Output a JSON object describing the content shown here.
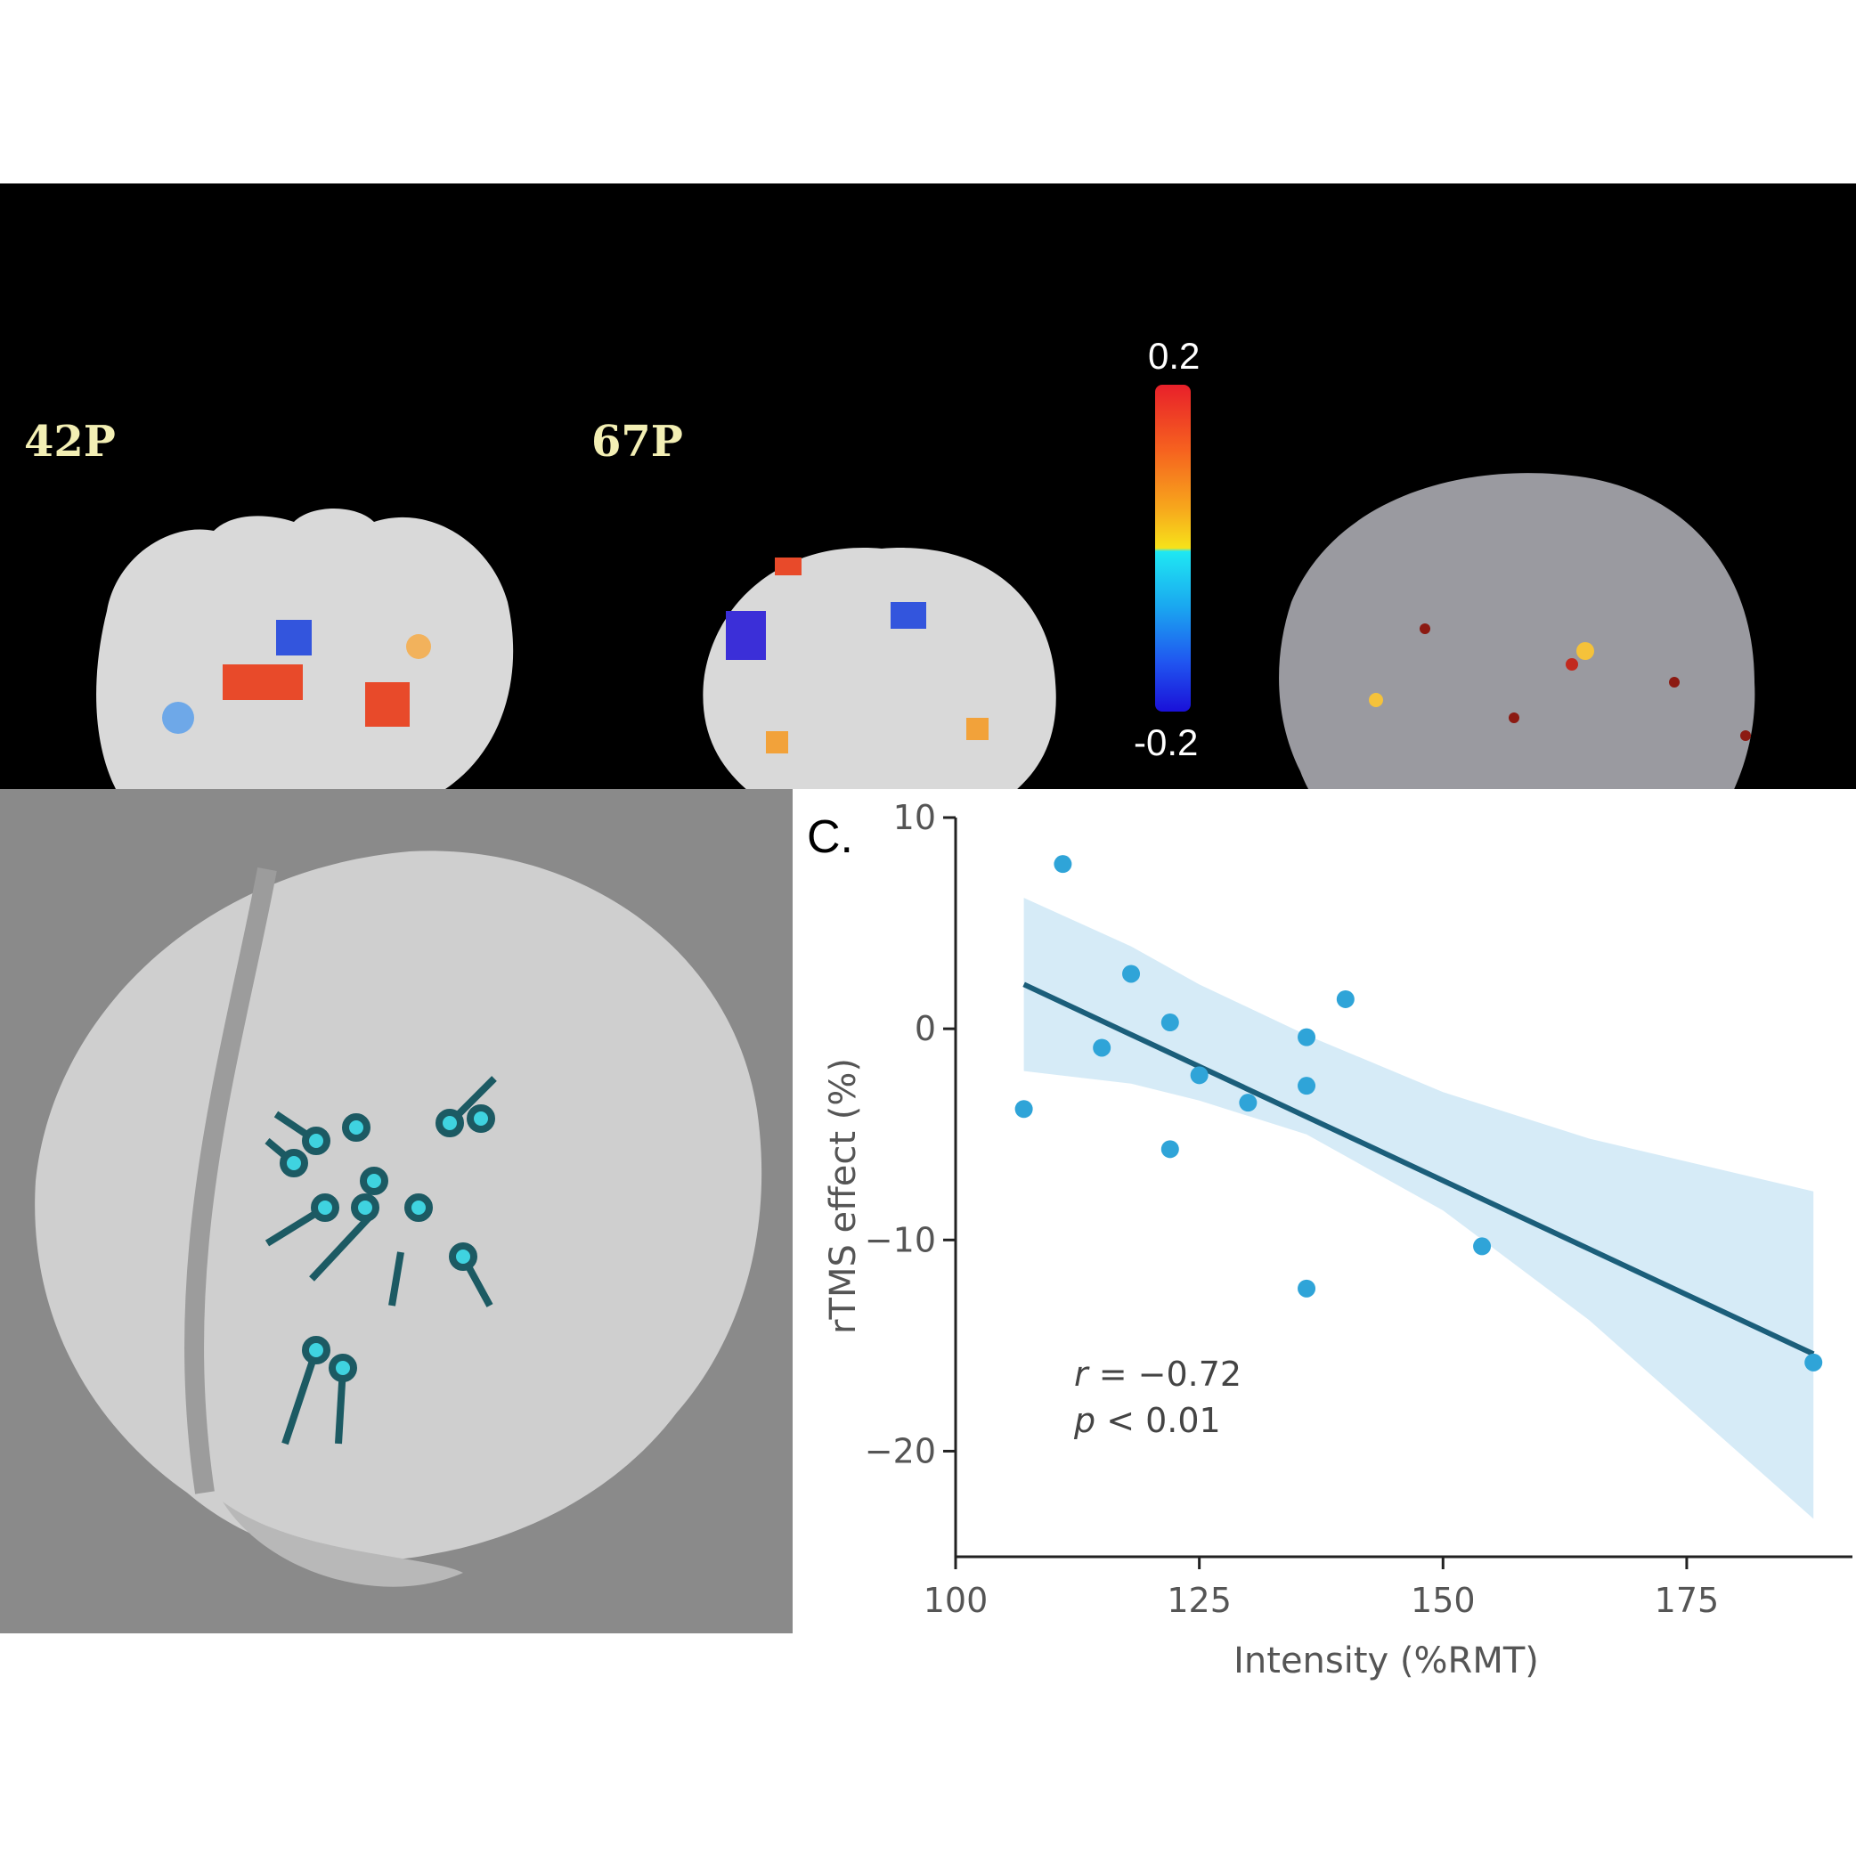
{
  "panels": {
    "slice_labels": [
      "42P",
      "67P"
    ],
    "colorbar": {
      "max_label": "0.2",
      "min_label": "-0.2"
    },
    "chart_panel_label": "C."
  },
  "chart_data": {
    "type": "scatter",
    "xlabel": "Intensity (%RMT)",
    "ylabel": "rTMS effect (%)",
    "xlim": [
      100,
      192
    ],
    "ylim": [
      -25,
      10
    ],
    "xticks": [
      100,
      125,
      150,
      175
    ],
    "yticks": [
      10,
      0,
      -10,
      -20
    ],
    "tick_labels_x": [
      "100",
      "125",
      "150",
      "175"
    ],
    "tick_labels_y": [
      "10",
      "0",
      "−10",
      "−20"
    ],
    "points": [
      {
        "x": 107,
        "y": -3.8
      },
      {
        "x": 111,
        "y": 7.8
      },
      {
        "x": 115,
        "y": -0.9
      },
      {
        "x": 118,
        "y": 2.6
      },
      {
        "x": 122,
        "y": 0.3
      },
      {
        "x": 122,
        "y": -5.7
      },
      {
        "x": 125,
        "y": -2.2
      },
      {
        "x": 130,
        "y": -3.5
      },
      {
        "x": 136,
        "y": -0.4
      },
      {
        "x": 136,
        "y": -2.7
      },
      {
        "x": 136,
        "y": -12.3
      },
      {
        "x": 140,
        "y": 1.4
      },
      {
        "x": 154,
        "y": -10.3
      },
      {
        "x": 188,
        "y": -15.8
      }
    ],
    "fit_line": {
      "x": [
        107,
        188
      ],
      "y": [
        2.1,
        -15.4
      ]
    },
    "confidence_band": {
      "x": [
        107,
        118,
        125,
        136,
        150,
        165,
        188
      ],
      "upper": [
        6.2,
        3.9,
        2.1,
        -0.3,
        -3.0,
        -5.2,
        -7.7
      ],
      "lower": [
        -2.0,
        -2.6,
        -3.4,
        -5.0,
        -8.6,
        -13.8,
        -23.2
      ]
    },
    "annotation": {
      "r_symbol": "r",
      "r_text": " = −0.72",
      "p_symbol": "p",
      "p_text": " < 0.01"
    },
    "colors": {
      "points": "#2fa4d8",
      "line": "#1b5e7a",
      "band": "#d6ebf7"
    }
  }
}
